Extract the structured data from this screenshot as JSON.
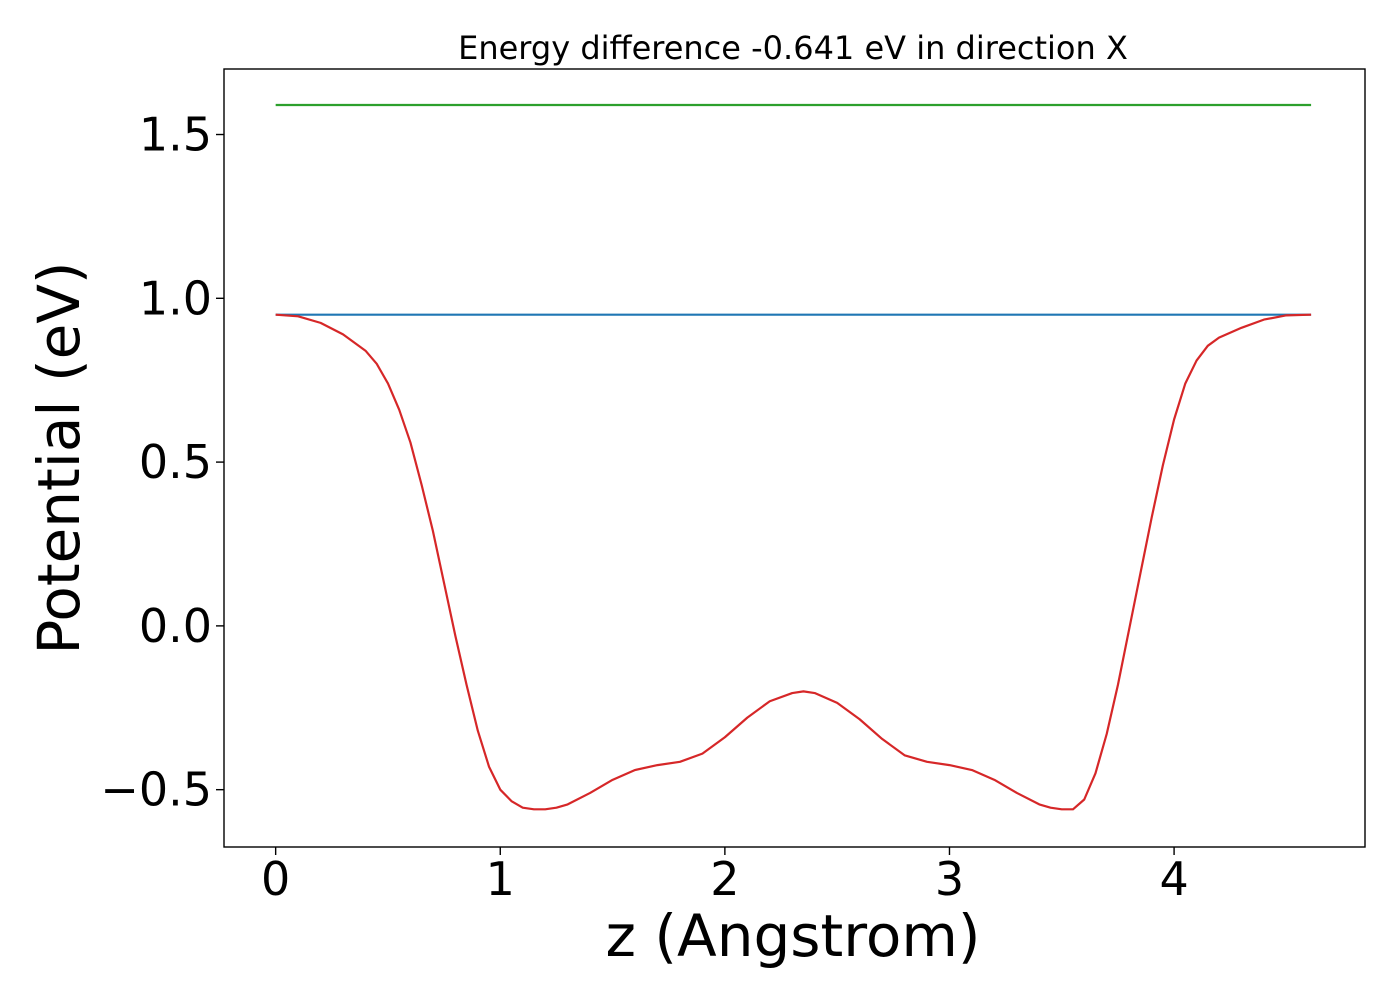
{
  "chart_data": {
    "type": "line",
    "title": "Energy difference -0.641 eV in direction X",
    "xlabel": "z (Angstrom)",
    "ylabel": "Potential (eV)",
    "xlim": [
      -0.23,
      4.85
    ],
    "ylim": [
      -0.675,
      1.7
    ],
    "x_ticks": [
      0,
      1,
      2,
      3,
      4
    ],
    "x_tick_labels": [
      "0",
      "1",
      "2",
      "3",
      "4"
    ],
    "y_ticks": [
      -0.5,
      0.0,
      0.5,
      1.0,
      1.5
    ],
    "y_tick_labels": [
      "−0.5",
      "0.0",
      "0.5",
      "1.0",
      "1.5"
    ],
    "grid": false,
    "series": [
      {
        "color": "#d62728",
        "x": [
          0,
          0.1,
          0.2,
          0.3,
          0.4,
          0.45,
          0.5,
          0.55,
          0.6,
          0.65,
          0.7,
          0.75,
          0.8,
          0.85,
          0.9,
          0.95,
          1.0,
          1.05,
          1.1,
          1.15,
          1.2,
          1.25,
          1.3,
          1.4,
          1.5,
          1.6,
          1.7,
          1.8,
          1.9,
          2.0,
          2.1,
          2.2,
          2.3,
          2.35,
          2.4,
          2.5,
          2.6,
          2.7,
          2.8,
          2.9,
          3.0,
          3.1,
          3.2,
          3.3,
          3.4,
          3.45,
          3.5,
          3.55,
          3.6,
          3.65,
          3.7,
          3.75,
          3.8,
          3.85,
          3.9,
          3.95,
          4.0,
          4.05,
          4.1,
          4.15,
          4.2,
          4.3,
          4.4,
          4.5,
          4.61
        ],
        "y": [
          0.95,
          0.945,
          0.925,
          0.89,
          0.84,
          0.8,
          0.74,
          0.66,
          0.56,
          0.43,
          0.29,
          0.13,
          -0.03,
          -0.18,
          -0.32,
          -0.43,
          -0.5,
          -0.535,
          -0.555,
          -0.56,
          -0.56,
          -0.555,
          -0.545,
          -0.51,
          -0.47,
          -0.44,
          -0.425,
          -0.415,
          -0.39,
          -0.34,
          -0.28,
          -0.23,
          -0.205,
          -0.2,
          -0.205,
          -0.235,
          -0.285,
          -0.345,
          -0.395,
          -0.415,
          -0.425,
          -0.44,
          -0.47,
          -0.51,
          -0.545,
          -0.555,
          -0.56,
          -0.56,
          -0.53,
          -0.45,
          -0.33,
          -0.18,
          -0.01,
          0.16,
          0.33,
          0.49,
          0.63,
          0.74,
          0.81,
          0.855,
          0.88,
          0.91,
          0.935,
          0.948,
          0.95
        ]
      },
      {
        "color": "#1f77b4",
        "x": [
          0,
          4.61
        ],
        "y": [
          0.95,
          0.95
        ]
      },
      {
        "color": "#2ca02c",
        "x": [
          0,
          4.61
        ],
        "y": [
          1.59,
          1.59
        ]
      }
    ]
  }
}
